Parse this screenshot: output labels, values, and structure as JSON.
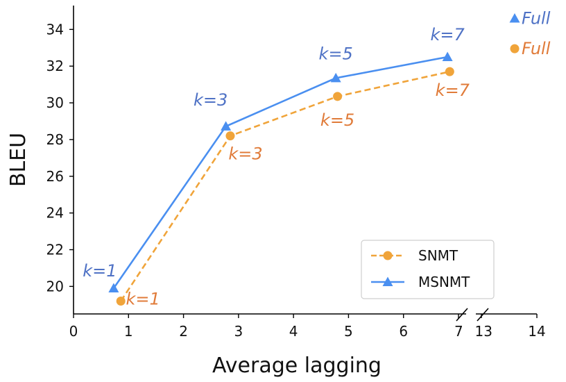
{
  "chart_data": {
    "type": "line",
    "xlabel": "Average lagging",
    "ylabel": "BLEU",
    "x_ticks_left": [
      "0",
      "1",
      "2",
      "3",
      "4",
      "5",
      "6",
      "7"
    ],
    "x_ticks_right": [
      "13",
      "14"
    ],
    "xlim_left": [
      0,
      7
    ],
    "xlim_right": [
      13,
      14
    ],
    "ylim": [
      18.5,
      35.3
    ],
    "y_ticks": [
      "20",
      "22",
      "24",
      "26",
      "28",
      "30",
      "32",
      "34"
    ],
    "grid": false,
    "legend_position": "lower-right",
    "series": [
      {
        "name": "SNMT",
        "color": "#f0a43a",
        "label_color": "#e07b39",
        "marker": "circle",
        "line_style": "dashed",
        "x": [
          0.86,
          2.85,
          4.8,
          6.84
        ],
        "y": [
          19.2,
          28.2,
          30.35,
          31.7
        ],
        "annotations": [
          "k=1",
          "k=3",
          "k=5",
          "k=7"
        ],
        "full": {
          "x": 13.6,
          "y": 32.95,
          "label": "Full"
        }
      },
      {
        "name": "MSNMT",
        "color": "#4a8ff0",
        "label_color": "#4f72c5",
        "marker": "triangle",
        "line_style": "solid",
        "x": [
          0.73,
          2.77,
          4.77,
          6.8
        ],
        "y": [
          19.9,
          28.72,
          31.35,
          32.5
        ],
        "annotations": [
          "k=1",
          "k=3",
          "k=5",
          "k=7"
        ],
        "full": {
          "x": 13.6,
          "y": 34.6,
          "label": "Full"
        }
      }
    ]
  }
}
